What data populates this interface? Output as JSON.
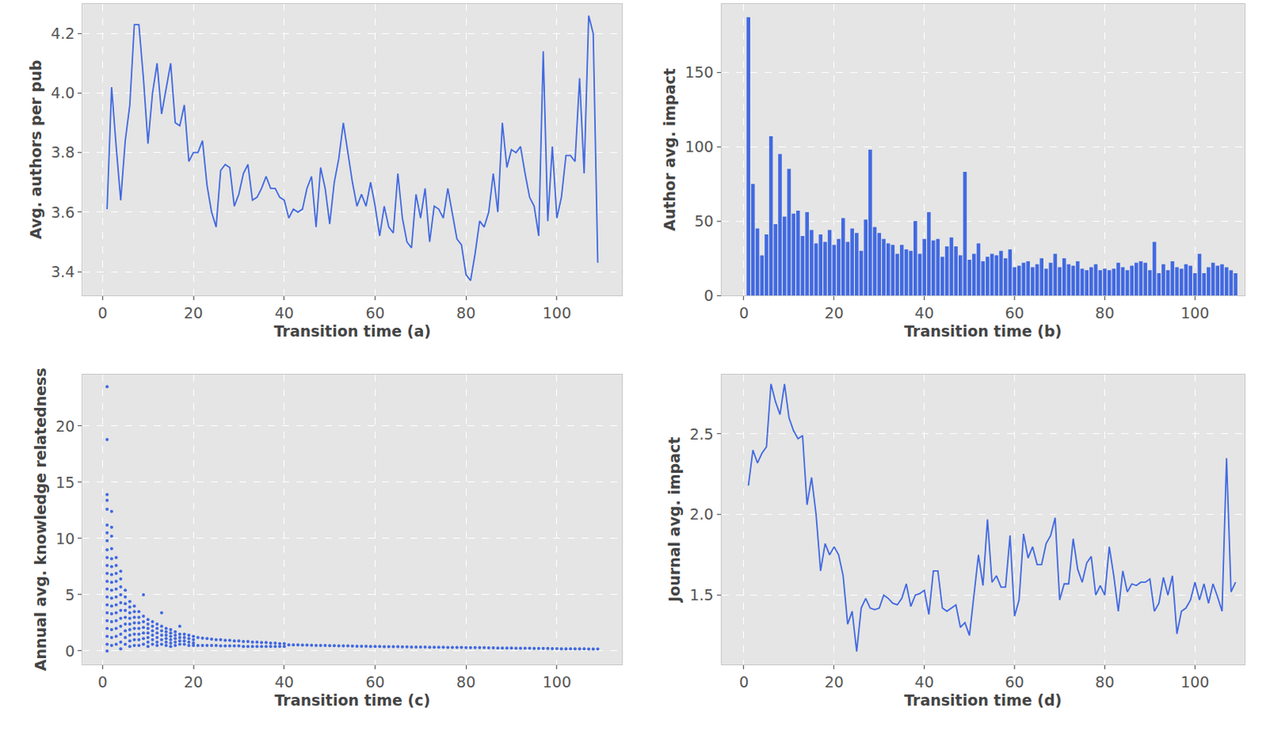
{
  "chart_data": [
    {
      "type": "line",
      "x_label": "Transition time (a)",
      "y_label": "Avg. authors per pub",
      "color": "#4169e1",
      "grid": true,
      "xlim": [
        -4.4,
        114.4
      ],
      "ylim": [
        3.32,
        4.3
      ],
      "xticks": [
        0,
        20,
        40,
        60,
        80,
        100
      ],
      "yticks": [
        3.4,
        3.6,
        3.8,
        {
          "value": 4,
          "label": "4.0"
        },
        4.2
      ],
      "x": [
        1,
        2,
        3,
        4,
        5,
        6,
        7,
        8,
        9,
        10,
        11,
        12,
        13,
        14,
        15,
        16,
        17,
        18,
        19,
        20,
        21,
        22,
        23,
        24,
        25,
        26,
        27,
        28,
        29,
        30,
        31,
        32,
        33,
        34,
        35,
        36,
        37,
        38,
        39,
        40,
        41,
        42,
        43,
        44,
        45,
        46,
        47,
        48,
        49,
        50,
        51,
        52,
        53,
        54,
        55,
        56,
        57,
        58,
        59,
        60,
        61,
        62,
        63,
        64,
        65,
        66,
        67,
        68,
        69,
        70,
        71,
        72,
        73,
        74,
        75,
        76,
        77,
        78,
        79,
        80,
        81,
        82,
        83,
        84,
        85,
        86,
        87,
        88,
        89,
        90,
        91,
        92,
        93,
        94,
        95,
        96,
        97,
        98,
        99,
        100,
        101,
        102,
        103,
        104,
        105,
        106,
        107,
        108,
        109
      ],
      "values": [
        3.61,
        4.02,
        3.82,
        3.64,
        3.84,
        3.96,
        4.23,
        4.23,
        4.05,
        3.83,
        4.0,
        4.1,
        3.93,
        4.02,
        4.1,
        3.9,
        3.89,
        3.96,
        3.77,
        3.8,
        3.8,
        3.84,
        3.69,
        3.6,
        3.55,
        3.74,
        3.76,
        3.75,
        3.62,
        3.66,
        3.73,
        3.76,
        3.64,
        3.65,
        3.68,
        3.72,
        3.68,
        3.68,
        3.65,
        3.64,
        3.58,
        3.61,
        3.6,
        3.61,
        3.68,
        3.72,
        3.55,
        3.75,
        3.68,
        3.56,
        3.7,
        3.78,
        3.9,
        3.8,
        3.7,
        3.62,
        3.66,
        3.62,
        3.7,
        3.62,
        3.52,
        3.62,
        3.55,
        3.53,
        3.73,
        3.58,
        3.5,
        3.48,
        3.66,
        3.58,
        3.68,
        3.5,
        3.62,
        3.61,
        3.58,
        3.68,
        3.59,
        3.51,
        3.49,
        3.39,
        3.37,
        3.46,
        3.57,
        3.55,
        3.6,
        3.73,
        3.6,
        3.9,
        3.75,
        3.81,
        3.8,
        3.82,
        3.73,
        3.65,
        3.62,
        3.52,
        4.14,
        3.57,
        3.82,
        3.58,
        3.65,
        3.79,
        3.79,
        3.77,
        4.05,
        3.73,
        4.26,
        4.2,
        3.43
      ]
    },
    {
      "type": "bar",
      "x_label": "Transition time (b)",
      "y_label": "Author avg. impact",
      "color": "#4169e1",
      "grid": true,
      "xlim": [
        -5,
        111
      ],
      "ylim": [
        0,
        196
      ],
      "xticks": [
        0,
        20,
        40,
        60,
        80,
        100
      ],
      "yticks": [
        0,
        50,
        100,
        150
      ],
      "x": [
        1,
        2,
        3,
        4,
        5,
        6,
        7,
        8,
        9,
        10,
        11,
        12,
        13,
        14,
        15,
        16,
        17,
        18,
        19,
        20,
        21,
        22,
        23,
        24,
        25,
        26,
        27,
        28,
        29,
        30,
        31,
        32,
        33,
        34,
        35,
        36,
        37,
        38,
        39,
        40,
        41,
        42,
        43,
        44,
        45,
        46,
        47,
        48,
        49,
        50,
        51,
        52,
        53,
        54,
        55,
        56,
        57,
        58,
        59,
        60,
        61,
        62,
        63,
        64,
        65,
        66,
        67,
        68,
        69,
        70,
        71,
        72,
        73,
        74,
        75,
        76,
        77,
        78,
        79,
        80,
        81,
        82,
        83,
        84,
        85,
        86,
        87,
        88,
        89,
        90,
        91,
        92,
        93,
        94,
        95,
        96,
        97,
        98,
        99,
        100,
        101,
        102,
        103,
        104,
        105,
        106,
        107,
        108,
        109
      ],
      "values": [
        187,
        75,
        45,
        27,
        41,
        107,
        48,
        95,
        53,
        85,
        55,
        57,
        40,
        56,
        44,
        35,
        41,
        36,
        44,
        34,
        38,
        52,
        36,
        45,
        42,
        30,
        51,
        98,
        46,
        42,
        38,
        35,
        34,
        28,
        34,
        31,
        30,
        50,
        28,
        38,
        56,
        37,
        38,
        26,
        33,
        39,
        33,
        27,
        83,
        24,
        28,
        35,
        23,
        26,
        28,
        27,
        30,
        25,
        31,
        19,
        20,
        22,
        23,
        19,
        21,
        25,
        18,
        22,
        28,
        19,
        25,
        21,
        20,
        23,
        18,
        17,
        19,
        21,
        17,
        18,
        17,
        18,
        22,
        19,
        17,
        20,
        22,
        23,
        22,
        17,
        36,
        15,
        21,
        17,
        23,
        19,
        18,
        21,
        20,
        15,
        28,
        15,
        19,
        22,
        20,
        21,
        19,
        17,
        15
      ]
    },
    {
      "type": "scatter",
      "x_label": "Transition time (c)",
      "y_label": "Annual avg. knowledge relatedness",
      "color": "#4169e1",
      "grid": true,
      "xlim": [
        -4.4,
        114.4
      ],
      "ylim": [
        -1.2,
        24.6
      ],
      "xticks": [
        0,
        20,
        40,
        60,
        80,
        100
      ],
      "yticks": [
        0,
        5,
        10,
        15,
        20
      ],
      "x": [
        1,
        2,
        3,
        4,
        5,
        6,
        7,
        8,
        9,
        10,
        11,
        12,
        13,
        14,
        15,
        16,
        17,
        18,
        19,
        20,
        21,
        22,
        23,
        24,
        25,
        26,
        27,
        28,
        29,
        30,
        31,
        32,
        33,
        34,
        35,
        36,
        37,
        38,
        39,
        40,
        41,
        42,
        43,
        44,
        45,
        46,
        47,
        48,
        49,
        50,
        51,
        52,
        53,
        54,
        55,
        56,
        57,
        58,
        59,
        60,
        61,
        62,
        63,
        64,
        65,
        66,
        67,
        68,
        69,
        70,
        71,
        72,
        73,
        74,
        75,
        76,
        77,
        78,
        79,
        80,
        81,
        82,
        83,
        84,
        85,
        86,
        87,
        88,
        89,
        90,
        91,
        92,
        93,
        94,
        95,
        96,
        97,
        98,
        99,
        100,
        101,
        102,
        103,
        104,
        105,
        106,
        107,
        108,
        109
      ],
      "values": [
        [
          23.5,
          18.8,
          13.9,
          13.4,
          12.6,
          11.2,
          10.5,
          9.8,
          9.0,
          8.3,
          7.6,
          6.9,
          6.2,
          5.5,
          4.8,
          4.1,
          3.4,
          2.7,
          2.0,
          1.3,
          0.6,
          0
        ],
        [
          12.4,
          11.0,
          10.2,
          9.1,
          8.2,
          7.5,
          6.8,
          6.1,
          5.4,
          4.7,
          4.0,
          3.3,
          2.6,
          1.9,
          1.2,
          0.5
        ],
        [
          8.3,
          7.6,
          6.9,
          6.2,
          5.5,
          4.8,
          4.1,
          3.4,
          2.7,
          2.0,
          1.3,
          0.6
        ],
        [
          7.1,
          6.4,
          5.7,
          5.0,
          4.3,
          3.6,
          2.9,
          2.2,
          1.5,
          0.8,
          0.2
        ],
        [
          5.4,
          4.8,
          4.2,
          3.6,
          3.0,
          2.4,
          1.8,
          1.2,
          0.6
        ],
        [
          4.4,
          3.9,
          3.4,
          2.9,
          2.4,
          1.9,
          1.4,
          0.9,
          0.4
        ],
        [
          4.0,
          3.5,
          3.0,
          2.5,
          2.0,
          1.5,
          1.0,
          0.5
        ],
        [
          3.5,
          3.0,
          2.5,
          2.0,
          1.5,
          1.0,
          0.5
        ],
        [
          5.0,
          3.1,
          2.6,
          2.1,
          1.6,
          1.1,
          0.6
        ],
        [
          2.8,
          2.4,
          2.0,
          1.6,
          1.2,
          0.8,
          0.4
        ],
        [
          2.6,
          2.2,
          1.8,
          1.4,
          1.0,
          0.6
        ],
        [
          2.4,
          2.0,
          1.6,
          1.2,
          0.8,
          0.5
        ],
        [
          3.4,
          2.2,
          1.8,
          1.4,
          1.0,
          0.6
        ],
        [
          2.0,
          1.7,
          1.4,
          1.1,
          0.8,
          0.5
        ],
        [
          1.9,
          1.6,
          1.3,
          1.0,
          0.7,
          0.4
        ],
        [
          1.7,
          1.4,
          1.1,
          0.8,
          0.5
        ],
        [
          2.2,
          1.5,
          1.2,
          0.9,
          0.6
        ],
        [
          1.5,
          1.2,
          0.9,
          0.6
        ],
        [
          1.4,
          1.1,
          0.8,
          0.5
        ],
        [
          1.3,
          1.0,
          0.7,
          0.5
        ],
        [
          1.2,
          0.5
        ],
        [
          1.15,
          0.5
        ],
        [
          1.1,
          0.5
        ],
        [
          1.05,
          0.5
        ],
        [
          1.0,
          0.5
        ],
        [
          1.0,
          0.45
        ],
        [
          0.95,
          0.45
        ],
        [
          0.95,
          0.45
        ],
        [
          0.9,
          0.45
        ],
        [
          0.9,
          0.45
        ],
        [
          0.85,
          0.4
        ],
        [
          0.85,
          0.4
        ],
        [
          0.8,
          0.4
        ],
        [
          0.8,
          0.4
        ],
        [
          0.75,
          0.4
        ],
        [
          0.75,
          0.4
        ],
        [
          0.7,
          0.4
        ],
        [
          0.7,
          0.4
        ],
        [
          0.65,
          0.4
        ],
        [
          0.65,
          0.4
        ],
        [
          0.55
        ],
        [
          0.55
        ],
        [
          0.54
        ],
        [
          0.53
        ],
        [
          0.52
        ],
        [
          0.51
        ],
        [
          0.5
        ],
        [
          0.5
        ],
        [
          0.49
        ],
        [
          0.48
        ],
        [
          0.47
        ],
        [
          0.46
        ],
        [
          0.45
        ],
        [
          0.45
        ],
        [
          0.44
        ],
        [
          0.43
        ],
        [
          0.42
        ],
        [
          0.42
        ],
        [
          0.41
        ],
        [
          0.4
        ],
        [
          0.4
        ],
        [
          0.39
        ],
        [
          0.39
        ],
        [
          0.38
        ],
        [
          0.38
        ],
        [
          0.37
        ],
        [
          0.37
        ],
        [
          0.36
        ],
        [
          0.36
        ],
        [
          0.35
        ],
        [
          0.35
        ],
        [
          0.34
        ],
        [
          0.34
        ],
        [
          0.33
        ],
        [
          0.33
        ],
        [
          0.32
        ],
        [
          0.32
        ],
        [
          0.31
        ],
        [
          0.31
        ],
        [
          0.3
        ],
        [
          0.3
        ],
        [
          0.3
        ],
        [
          0.29
        ],
        [
          0.29
        ],
        [
          0.28
        ],
        [
          0.28
        ],
        [
          0.27
        ],
        [
          0.27
        ],
        [
          0.26
        ],
        [
          0.26
        ],
        [
          0.25
        ],
        [
          0.25
        ],
        [
          0.24
        ],
        [
          0.24
        ],
        [
          0.23
        ],
        [
          0.23
        ],
        [
          0.22
        ],
        [
          0.22
        ],
        [
          0.21
        ],
        [
          0.21
        ],
        [
          0.2
        ],
        [
          0.2
        ],
        [
          0.2
        ],
        [
          0.19
        ],
        [
          0.19
        ],
        [
          0.19
        ],
        [
          0.18
        ],
        [
          0.18
        ],
        [
          0.18
        ]
      ]
    },
    {
      "type": "line",
      "x_label": "Transition time (d)",
      "y_label": "Journal avg. impact",
      "color": "#4169e1",
      "grid": true,
      "xlim": [
        -5,
        111
      ],
      "ylim": [
        1.07,
        2.87
      ],
      "xticks": [
        0,
        20,
        40,
        60,
        80,
        100
      ],
      "yticks": [
        1.5,
        {
          "value": 2,
          "label": "2.0"
        },
        2.5
      ],
      "x": [
        1,
        2,
        3,
        4,
        5,
        6,
        7,
        8,
        9,
        10,
        11,
        12,
        13,
        14,
        15,
        16,
        17,
        18,
        19,
        20,
        21,
        22,
        23,
        24,
        25,
        26,
        27,
        28,
        29,
        30,
        31,
        32,
        33,
        34,
        35,
        36,
        37,
        38,
        39,
        40,
        41,
        42,
        43,
        44,
        45,
        46,
        47,
        48,
        49,
        50,
        51,
        52,
        53,
        54,
        55,
        56,
        57,
        58,
        59,
        60,
        61,
        62,
        63,
        64,
        65,
        66,
        67,
        68,
        69,
        70,
        71,
        72,
        73,
        74,
        75,
        76,
        77,
        78,
        79,
        80,
        81,
        82,
        83,
        84,
        85,
        86,
        87,
        88,
        89,
        90,
        91,
        92,
        93,
        94,
        95,
        96,
        97,
        98,
        99,
        100,
        101,
        102,
        103,
        104,
        105,
        106,
        107,
        108,
        109
      ],
      "values": [
        2.18,
        2.4,
        2.32,
        2.38,
        2.42,
        2.81,
        2.7,
        2.62,
        2.81,
        2.6,
        2.52,
        2.47,
        2.49,
        2.06,
        2.23,
        2.0,
        1.65,
        1.82,
        1.75,
        1.8,
        1.75,
        1.62,
        1.32,
        1.4,
        1.15,
        1.42,
        1.48,
        1.42,
        1.41,
        1.42,
        1.5,
        1.48,
        1.45,
        1.44,
        1.48,
        1.57,
        1.43,
        1.5,
        1.51,
        1.53,
        1.38,
        1.65,
        1.65,
        1.42,
        1.4,
        1.42,
        1.44,
        1.3,
        1.33,
        1.25,
        1.5,
        1.75,
        1.56,
        1.97,
        1.58,
        1.62,
        1.55,
        1.55,
        1.87,
        1.37,
        1.47,
        1.88,
        1.73,
        1.8,
        1.69,
        1.69,
        1.82,
        1.87,
        1.98,
        1.47,
        1.57,
        1.57,
        1.85,
        1.66,
        1.58,
        1.7,
        1.74,
        1.5,
        1.56,
        1.5,
        1.8,
        1.62,
        1.4,
        1.65,
        1.52,
        1.57,
        1.56,
        1.58,
        1.58,
        1.6,
        1.4,
        1.45,
        1.61,
        1.5,
        1.62,
        1.26,
        1.4,
        1.42,
        1.47,
        1.58,
        1.47,
        1.57,
        1.45,
        1.57,
        1.49,
        1.4,
        2.35,
        1.52,
        1.58
      ]
    }
  ]
}
